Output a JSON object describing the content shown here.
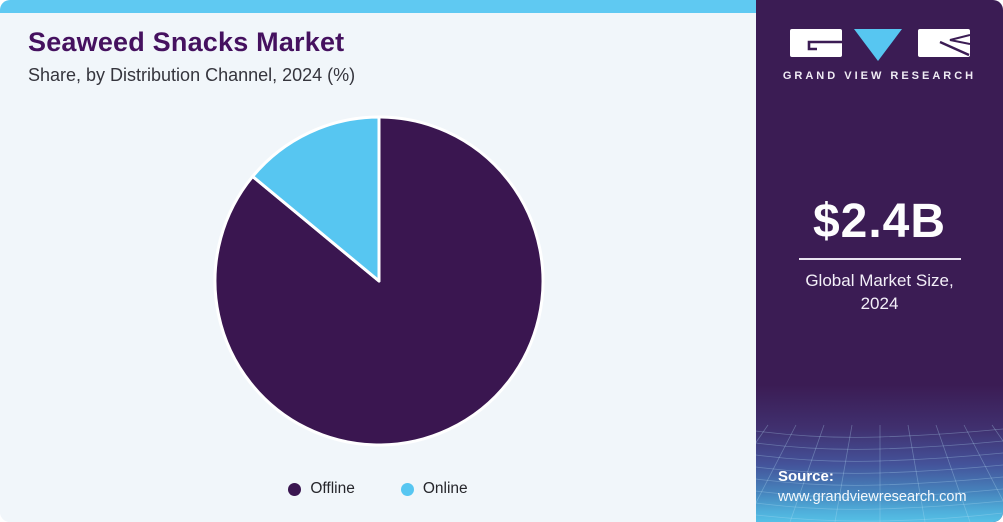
{
  "header": {
    "title": "Seaweed Snacks Market",
    "subtitle": "Share, by Distribution Channel, 2024 (%)"
  },
  "chart_data": {
    "type": "pie",
    "title": "Seaweed Snacks Market Share, by Distribution Channel, 2024 (%)",
    "unit": "%",
    "categories": [
      "Offline",
      "Online"
    ],
    "values": [
      86,
      14
    ],
    "colors": [
      "#3A1650",
      "#57C6F1"
    ],
    "start_angle_deg": 0,
    "direction": "clockwise",
    "slice_border_color": "#FFFFFF",
    "legend_position": "bottom",
    "data_labels_shown": false
  },
  "sidebar": {
    "logo": {
      "brand": "GRAND VIEW RESEARCH",
      "triangle_color": "#57C6F1",
      "mark_color": "#3B1C54"
    },
    "stat": {
      "value": "$2.4B",
      "label_line1": "Global Market Size,",
      "label_line2": "2024"
    },
    "source": {
      "label": "Source:",
      "url": "www.grandviewresearch.com"
    }
  },
  "colors": {
    "top_strip": "#5FC9F2",
    "panel_bg": "#F1F6FA",
    "title_text": "#45115F",
    "sidebar_bg": "#3B1C54",
    "accent_blue": "#57C6F1"
  }
}
